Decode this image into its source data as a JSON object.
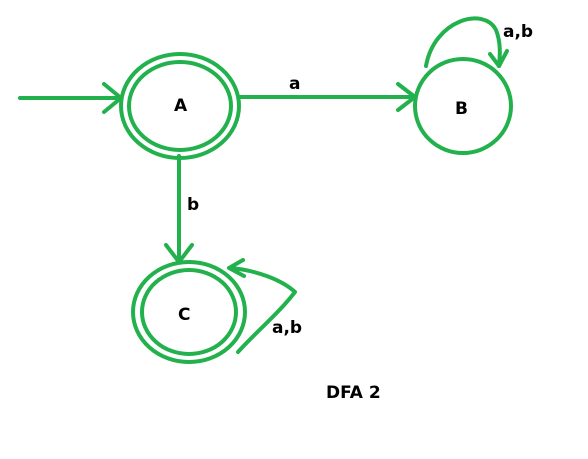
{
  "caption": "DFA 2",
  "colors": {
    "accent": "#22b14c",
    "text": "#000000",
    "background": "#ffffff"
  },
  "states": [
    {
      "id": "A",
      "label": "A",
      "start": true,
      "accepting": true
    },
    {
      "id": "B",
      "label": "B",
      "start": false,
      "accepting": false
    },
    {
      "id": "C",
      "label": "C",
      "start": false,
      "accepting": true
    }
  ],
  "transitions": [
    {
      "from": "A",
      "to": "B",
      "label": "a"
    },
    {
      "from": "A",
      "to": "C",
      "label": "b"
    },
    {
      "from": "B",
      "to": "B",
      "label": "a,b"
    },
    {
      "from": "C",
      "to": "C",
      "label": "a,b"
    }
  ]
}
